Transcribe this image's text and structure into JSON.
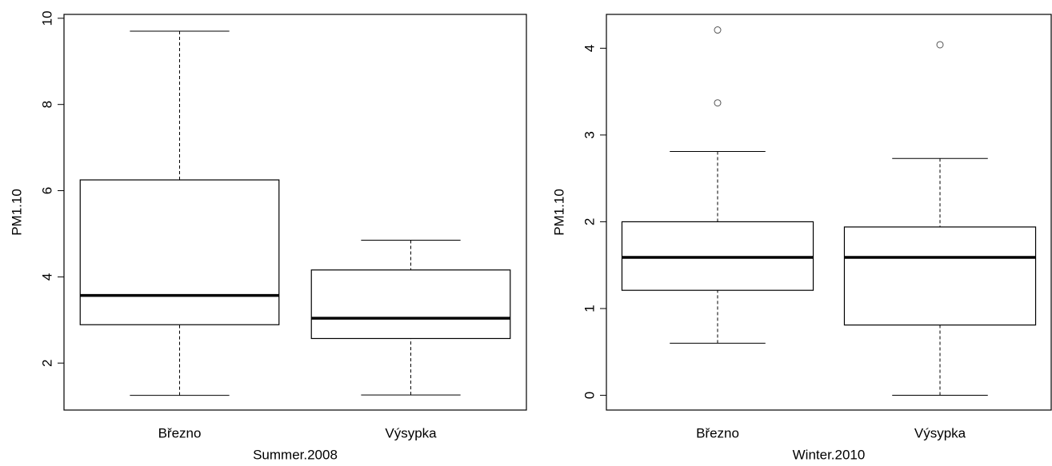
{
  "chart_data": [
    {
      "type": "box",
      "xlabel": "Summer.2008",
      "ylabel": "PM1.10",
      "categories": [
        "Březno",
        "Výsypka"
      ],
      "boxes": [
        {
          "min": 1.25,
          "q1": 2.89,
          "median": 3.57,
          "q3": 6.25,
          "max": 9.7,
          "outliers": []
        },
        {
          "min": 1.26,
          "q1": 2.57,
          "median": 3.04,
          "q3": 4.16,
          "max": 4.85,
          "outliers": []
        }
      ],
      "color": "#000000",
      "ylim": [
        0.91,
        10.09
      ],
      "yticks": [
        2,
        4,
        6,
        8,
        10
      ]
    },
    {
      "type": "box",
      "xlabel": "Winter.2010",
      "ylabel": "PM1.10",
      "categories": [
        "Březno",
        "Výsypka"
      ],
      "boxes": [
        {
          "min": 0.6,
          "q1": 1.21,
          "median": 1.59,
          "q3": 2.0,
          "max": 2.81,
          "outliers": [
            3.37,
            4.21
          ]
        },
        {
          "min": 0,
          "q1": 0.81,
          "median": 1.59,
          "q3": 1.94,
          "max": 2.73,
          "outliers": [
            4.04
          ]
        }
      ],
      "color": "#000000",
      "ylim": [
        -0.17,
        4.39
      ],
      "yticks": [
        0,
        1,
        2,
        3,
        4
      ]
    }
  ]
}
